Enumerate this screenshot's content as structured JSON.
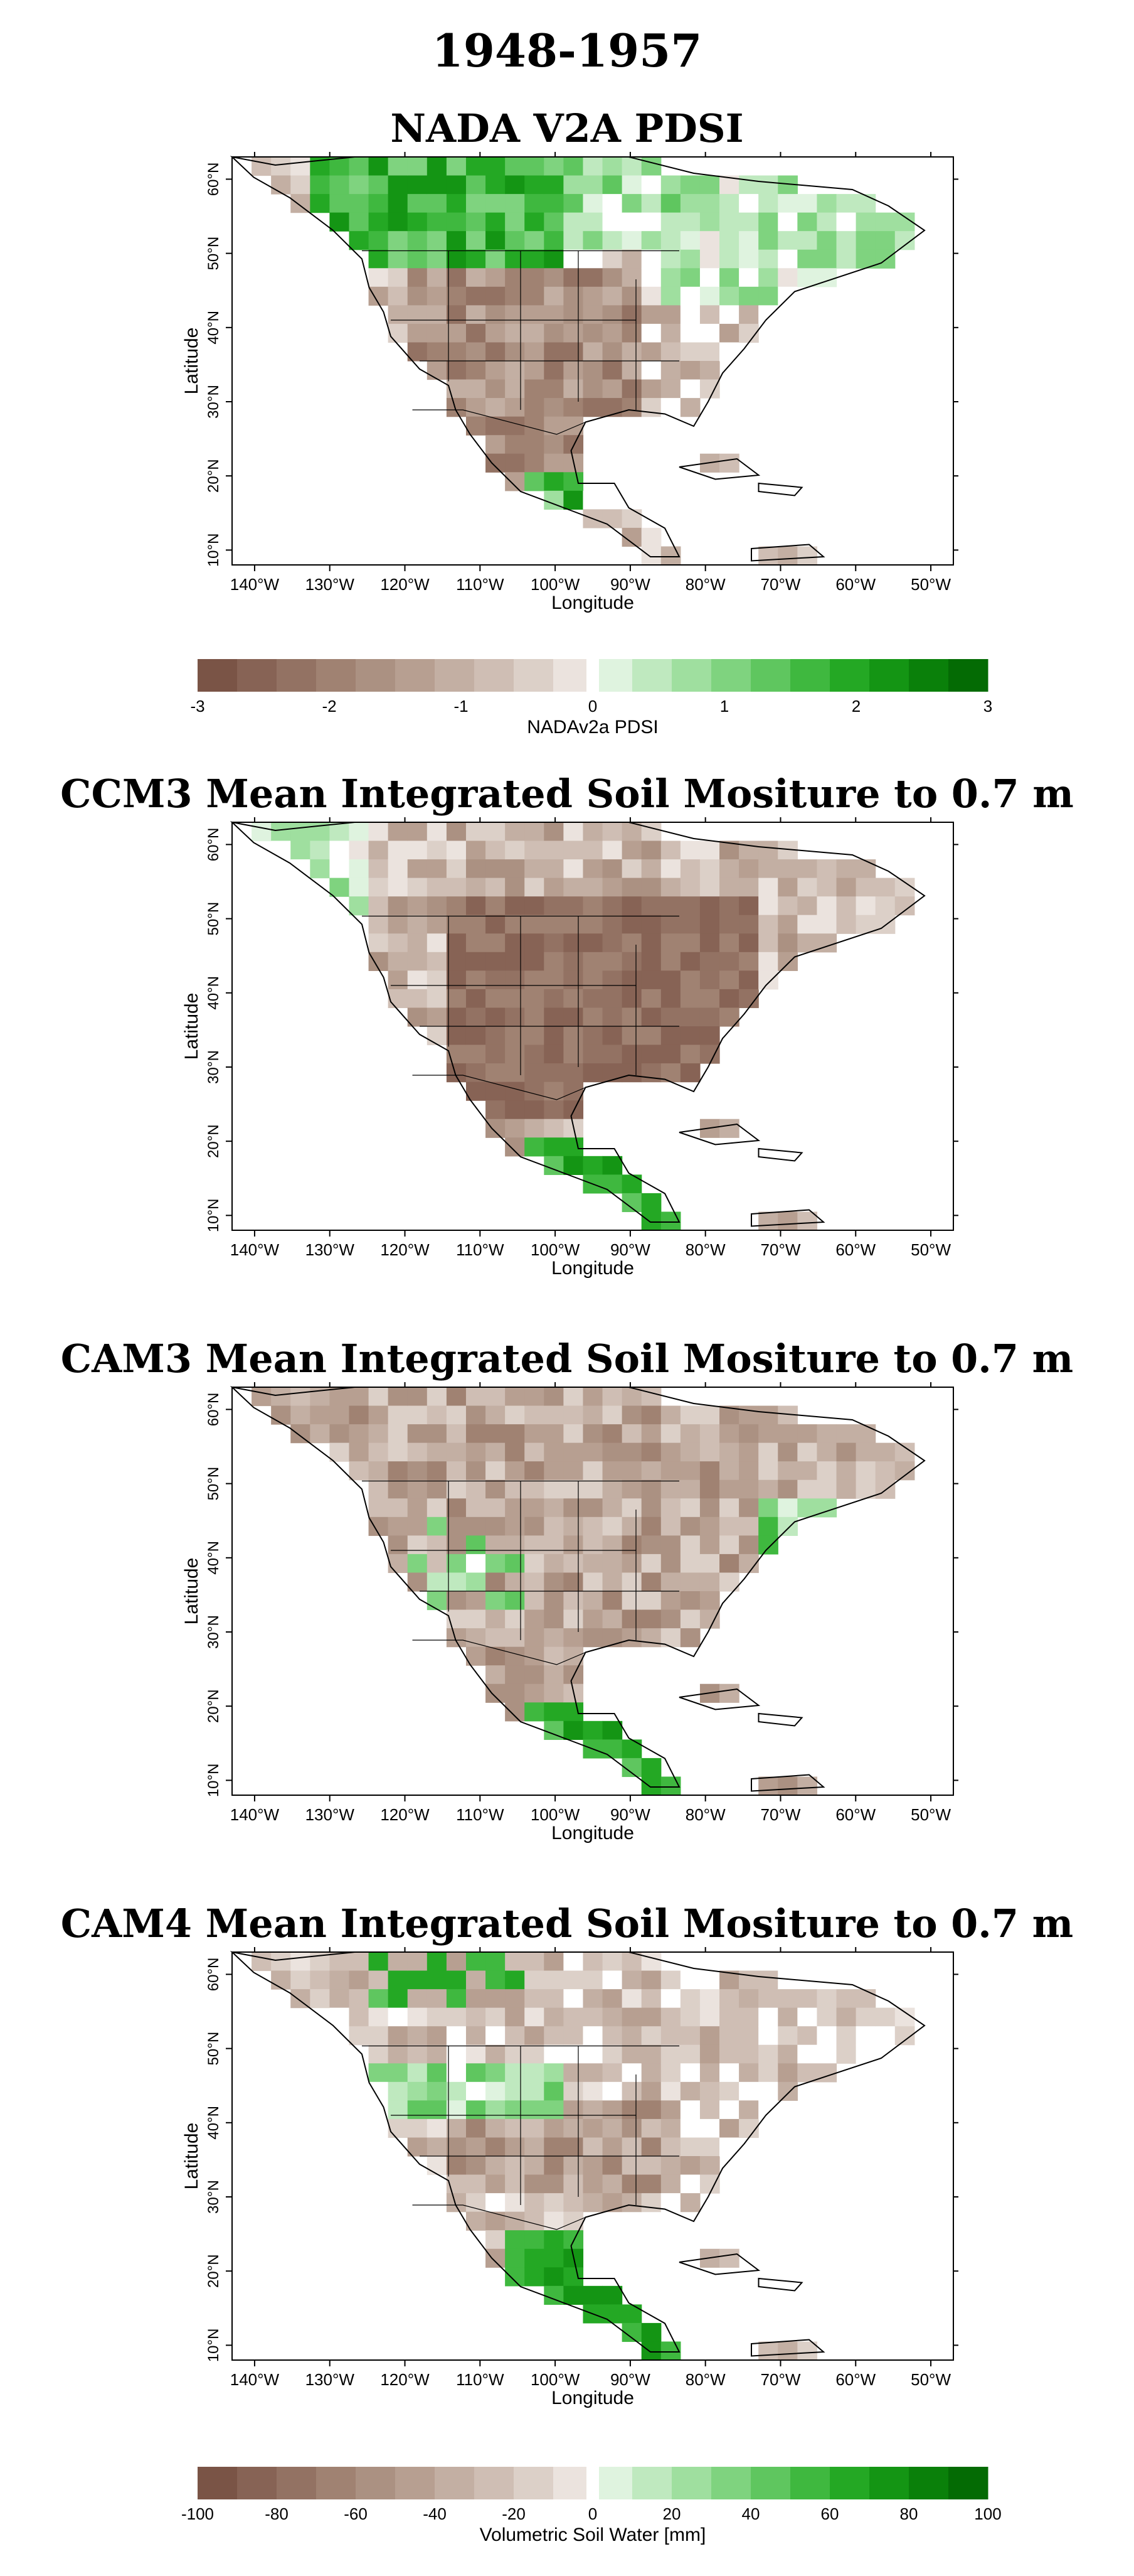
{
  "main_title": "1948-1957",
  "panels": [
    {
      "title": "NADA V2A PDSI",
      "xlabel": "Longitude",
      "ylabel": "Latitude",
      "colormap": "pdsi"
    },
    {
      "title": "CCM3 Mean Integrated Soil Mositure to 0.7 m",
      "xlabel": "Longitude",
      "ylabel": "Latitude",
      "colormap": "ccm3"
    },
    {
      "title": "CAM3 Mean Integrated Soil Mositure to 0.7 m",
      "xlabel": "Longitude",
      "ylabel": "Latitude",
      "colormap": "cam3"
    },
    {
      "title": "CAM4 Mean Integrated Soil Mositure to 0.7 m",
      "xlabel": "Longitude",
      "ylabel": "Latitude",
      "colormap": "cam4"
    }
  ],
  "lon_ticks": [
    "140°W",
    "130°W",
    "120°W",
    "110°W",
    "100°W",
    "90°W",
    "80°W",
    "70°W",
    "60°W",
    "50°W"
  ],
  "lat_ticks": [
    "60°N",
    "50°N",
    "40°N",
    "30°N",
    "20°N",
    "10°N"
  ],
  "colorbars": [
    {
      "label": "NADAv2a PDSI",
      "ticks": [
        "-3",
        "-2",
        "-1",
        "0",
        "1",
        "2",
        "3"
      ]
    },
    {
      "label": "Volumetric Soil Water [mm]",
      "ticks": [
        "-100",
        "-80",
        "-60",
        "-40",
        "-20",
        "0",
        "20",
        "40",
        "60",
        "80",
        "100"
      ]
    }
  ],
  "colors": {
    "dry_scale": [
      "#7a5446",
      "#876355",
      "#937263",
      "#a08272",
      "#ab9182",
      "#b79f91",
      "#c3afa3",
      "#cfbeb4",
      "#dcd0c8",
      "#ebe3de"
    ],
    "wet_scale": [
      "#dff3df",
      "#bfe9bf",
      "#9fdf9f",
      "#7fd37f",
      "#5fc65f",
      "#3fb83f",
      "#24a824",
      "#149514",
      "#0a800a",
      "#046b04"
    ],
    "white": "#ffffff",
    "coastline": "#000000"
  }
}
